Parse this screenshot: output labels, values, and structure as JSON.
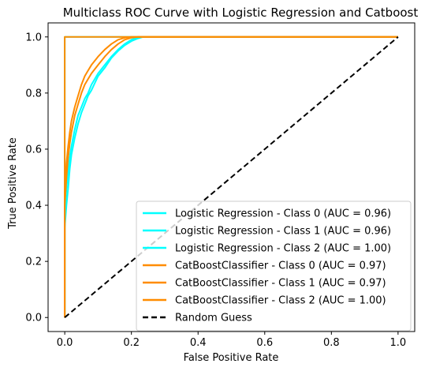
{
  "chart_data": {
    "type": "line",
    "title": "Multiclass ROC Curve with Logistic Regression and Catboost",
    "xlabel": "False Positive Rate",
    "ylabel": "True Positive Rate",
    "xlim": [
      -0.05,
      1.05
    ],
    "ylim": [
      -0.05,
      1.05
    ],
    "xticks": [
      "0.0",
      "0.2",
      "0.4",
      "0.6",
      "0.8",
      "1.0"
    ],
    "yticks": [
      "0.0",
      "0.2",
      "0.4",
      "0.6",
      "0.8",
      "1.0"
    ],
    "grid": false,
    "legend_position": "lower-right",
    "series": [
      {
        "name": "Logistic Regression - Class 0 (AUC = 0.96)",
        "color": "#00ffff",
        "dash": "solid",
        "x": [
          0,
          0,
          0.005,
          0.01,
          0.015,
          0.02,
          0.03,
          0.04,
          0.05,
          0.06,
          0.07,
          0.08,
          0.1,
          0.12,
          0.14,
          0.16,
          0.18,
          0.2,
          0.22,
          0.235,
          1.0
        ],
        "y": [
          0,
          0.32,
          0.4,
          0.46,
          0.53,
          0.58,
          0.64,
          0.69,
          0.73,
          0.76,
          0.79,
          0.81,
          0.86,
          0.89,
          0.925,
          0.95,
          0.97,
          0.985,
          0.995,
          1.0,
          1.0
        ]
      },
      {
        "name": "Logistic Regression - Class 1 (AUC = 0.96)",
        "color": "#00ffff",
        "dash": "solid",
        "x": [
          0,
          0,
          0.005,
          0.01,
          0.015,
          0.02,
          0.03,
          0.04,
          0.05,
          0.06,
          0.07,
          0.08,
          0.1,
          0.12,
          0.14,
          0.16,
          0.18,
          0.2,
          0.22,
          1.0
        ],
        "y": [
          0,
          0.38,
          0.46,
          0.52,
          0.57,
          0.61,
          0.67,
          0.72,
          0.75,
          0.78,
          0.8,
          0.83,
          0.87,
          0.9,
          0.93,
          0.955,
          0.975,
          0.99,
          1.0,
          1.0
        ]
      },
      {
        "name": "Logistic Regression - Class 2 (AUC = 1.00)",
        "color": "#00ffff",
        "dash": "solid",
        "x": [
          0,
          0,
          1.0
        ],
        "y": [
          0,
          1.0,
          1.0
        ]
      },
      {
        "name": "CatBoostClassifier - Class 0 (AUC = 0.97)",
        "color": "#ff8c00",
        "dash": "solid",
        "x": [
          0,
          0,
          0.005,
          0.01,
          0.015,
          0.02,
          0.03,
          0.04,
          0.05,
          0.06,
          0.07,
          0.08,
          0.1,
          0.12,
          0.14,
          0.16,
          0.18,
          0.2,
          0.22,
          1.0
        ],
        "y": [
          0,
          0.4,
          0.5,
          0.57,
          0.62,
          0.66,
          0.72,
          0.76,
          0.8,
          0.83,
          0.85,
          0.87,
          0.9,
          0.93,
          0.955,
          0.975,
          0.99,
          0.997,
          1.0,
          1.0
        ]
      },
      {
        "name": "CatBoostClassifier - Class 1 (AUC = 0.97)",
        "color": "#ff8c00",
        "dash": "solid",
        "x": [
          0,
          0,
          0.005,
          0.01,
          0.015,
          0.02,
          0.03,
          0.04,
          0.05,
          0.06,
          0.07,
          0.08,
          0.1,
          0.12,
          0.14,
          0.16,
          0.18,
          0.2,
          1.0
        ],
        "y": [
          0,
          0.45,
          0.55,
          0.61,
          0.66,
          0.7,
          0.75,
          0.79,
          0.83,
          0.86,
          0.88,
          0.9,
          0.93,
          0.955,
          0.975,
          0.99,
          0.997,
          1.0,
          1.0
        ]
      },
      {
        "name": "CatBoostClassifier - Class 2 (AUC = 1.00)",
        "color": "#ff8c00",
        "dash": "solid",
        "x": [
          0,
          0,
          1.0
        ],
        "y": [
          0,
          1.0,
          1.0
        ]
      },
      {
        "name": "Random Guess",
        "color": "#000000",
        "dash": "dashed",
        "x": [
          0,
          1
        ],
        "y": [
          0,
          1
        ]
      }
    ]
  }
}
